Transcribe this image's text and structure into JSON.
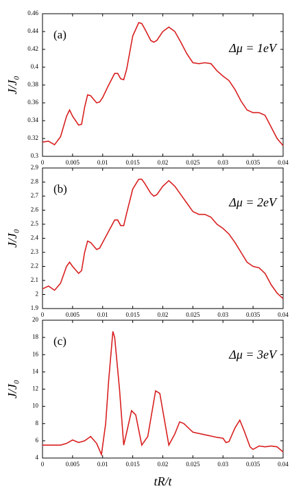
{
  "chart_data": [
    {
      "type": "line",
      "panel_label": "(a)",
      "annotation": "Δμ = 1eV",
      "ylabel": "J/J₀",
      "color": "#d81e1e",
      "x": [
        0,
        0.001,
        0.002,
        0.003,
        0.004,
        0.0045,
        0.005,
        0.006,
        0.0065,
        0.007,
        0.0075,
        0.008,
        0.009,
        0.0095,
        0.01,
        0.011,
        0.012,
        0.0125,
        0.013,
        0.0135,
        0.014,
        0.015,
        0.016,
        0.0165,
        0.017,
        0.018,
        0.0185,
        0.019,
        0.02,
        0.021,
        0.022,
        0.023,
        0.024,
        0.025,
        0.026,
        0.027,
        0.028,
        0.029,
        0.03,
        0.031,
        0.032,
        0.033,
        0.034,
        0.035,
        0.036,
        0.037,
        0.038,
        0.039,
        0.04
      ],
      "values": [
        0.316,
        0.317,
        0.313,
        0.322,
        0.345,
        0.352,
        0.345,
        0.335,
        0.336,
        0.355,
        0.369,
        0.368,
        0.36,
        0.361,
        0.366,
        0.38,
        0.393,
        0.393,
        0.387,
        0.386,
        0.398,
        0.435,
        0.45,
        0.449,
        0.443,
        0.43,
        0.428,
        0.43,
        0.44,
        0.445,
        0.44,
        0.428,
        0.415,
        0.405,
        0.404,
        0.405,
        0.404,
        0.396,
        0.39,
        0.385,
        0.375,
        0.362,
        0.352,
        0.349,
        0.349,
        0.346,
        0.333,
        0.32,
        0.312
      ],
      "xlim": [
        0,
        0.04
      ],
      "xticks": [
        0,
        0.005,
        0.01,
        0.015,
        0.02,
        0.025,
        0.03,
        0.035,
        0.04
      ],
      "ylim": [
        0.3,
        0.46
      ],
      "yticks": [
        0.3,
        0.32,
        0.34,
        0.36,
        0.38,
        0.4,
        0.42,
        0.44,
        0.46
      ]
    },
    {
      "type": "line",
      "panel_label": "(b)",
      "annotation": "Δμ = 2eV",
      "ylabel": "J/J₀",
      "color": "#d81e1e",
      "x": [
        0,
        0.001,
        0.002,
        0.003,
        0.004,
        0.0045,
        0.005,
        0.006,
        0.0065,
        0.007,
        0.0075,
        0.008,
        0.009,
        0.0095,
        0.01,
        0.011,
        0.012,
        0.0125,
        0.013,
        0.0135,
        0.014,
        0.015,
        0.016,
        0.0165,
        0.017,
        0.018,
        0.0185,
        0.019,
        0.02,
        0.021,
        0.022,
        0.023,
        0.024,
        0.025,
        0.026,
        0.027,
        0.028,
        0.029,
        0.03,
        0.031,
        0.032,
        0.033,
        0.034,
        0.035,
        0.036,
        0.037,
        0.038,
        0.039,
        0.04
      ],
      "values": [
        2.04,
        2.06,
        2.03,
        2.08,
        2.2,
        2.23,
        2.2,
        2.15,
        2.17,
        2.3,
        2.38,
        2.37,
        2.32,
        2.33,
        2.37,
        2.45,
        2.53,
        2.53,
        2.49,
        2.49,
        2.58,
        2.75,
        2.82,
        2.82,
        2.79,
        2.72,
        2.7,
        2.71,
        2.77,
        2.81,
        2.77,
        2.71,
        2.65,
        2.59,
        2.57,
        2.57,
        2.55,
        2.5,
        2.47,
        2.43,
        2.37,
        2.3,
        2.23,
        2.2,
        2.19,
        2.15,
        2.07,
        2.01,
        1.97
      ],
      "xlim": [
        0,
        0.04
      ],
      "xticks": [
        0,
        0.005,
        0.01,
        0.015,
        0.02,
        0.025,
        0.03,
        0.035,
        0.04
      ],
      "ylim": [
        1.9,
        2.9
      ],
      "yticks": [
        1.9,
        2,
        2.1,
        2.2,
        2.3,
        2.4,
        2.5,
        2.6,
        2.7,
        2.8,
        2.9
      ]
    },
    {
      "type": "line",
      "panel_label": "(c)",
      "annotation": "Δμ = 3eV",
      "ylabel": "J/J₀",
      "xlabel": "tR/t",
      "color": "#d81e1e",
      "x": [
        0,
        0.002,
        0.003,
        0.004,
        0.005,
        0.006,
        0.007,
        0.008,
        0.009,
        0.0098,
        0.0105,
        0.011,
        0.0117,
        0.012,
        0.0128,
        0.0135,
        0.014,
        0.0148,
        0.0155,
        0.0165,
        0.0175,
        0.0188,
        0.0195,
        0.021,
        0.022,
        0.0228,
        0.0235,
        0.025,
        0.027,
        0.029,
        0.03,
        0.0305,
        0.031,
        0.032,
        0.0328,
        0.0335,
        0.0345,
        0.035,
        0.036,
        0.037,
        0.038,
        0.039,
        0.04
      ],
      "values": [
        5.5,
        5.5,
        5.5,
        5.7,
        6.1,
        5.8,
        6.0,
        6.5,
        5.7,
        4.4,
        8,
        13,
        18.7,
        18,
        12,
        5.5,
        7,
        9.5,
        9,
        5.5,
        6.5,
        11.8,
        11.5,
        5.5,
        6.8,
        8.2,
        8.0,
        7.0,
        6.7,
        6.4,
        6.3,
        5.8,
        5.9,
        7.5,
        8.4,
        7.2,
        5.3,
        5.0,
        5.4,
        5.3,
        5.4,
        5.3,
        4.7
      ],
      "xlim": [
        0,
        0.04
      ],
      "xticks": [
        0,
        0.005,
        0.01,
        0.015,
        0.02,
        0.025,
        0.03,
        0.035,
        0.04
      ],
      "ylim": [
        4,
        20
      ],
      "yticks": [
        4,
        6,
        8,
        10,
        12,
        14,
        16,
        18,
        20
      ]
    }
  ]
}
